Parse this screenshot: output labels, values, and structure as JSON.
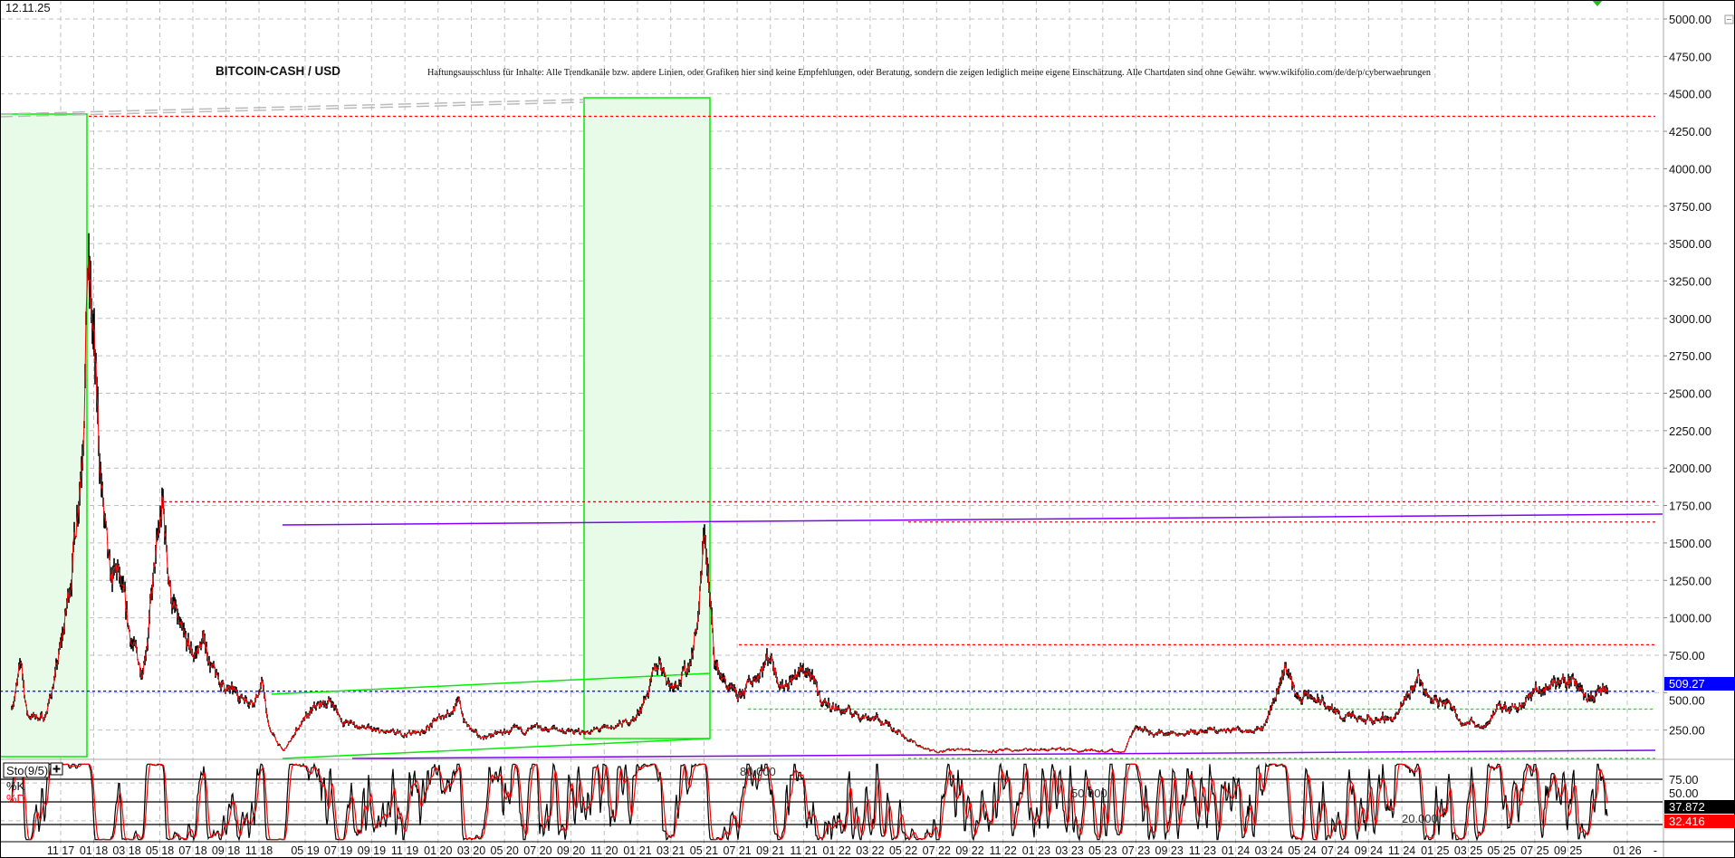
{
  "header": {
    "date": "12.11.25",
    "title": "BITCOIN-CASH / USD",
    "disclaimer": "Haftungsausschluss für Inhalte: Alle Trendkanäle bzw. andere Linien, oder Grafiken hier sind keine Empfehlungen, oder Beratung, sondern die zeigen lediglich meine eigene Einschätzung. Alle Chartdaten sind ohne Gewähr.  www.wikifolio.com/de/de/p/cyberwaehrungen"
  },
  "colors": {
    "candle": "#000000",
    "close_line": "#ff0000",
    "zone_fill": "#e8fbe8",
    "zone_border": "#00ee00",
    "last_price_bg": "#0000ff",
    "k_bg": "#000000",
    "d_bg": "#ff0000",
    "purple": "#8000ff"
  },
  "chart_data": [
    {
      "type": "line",
      "series_style": "bar-ohlc with close line",
      "y_axis_side": "right",
      "ylim": [
        0,
        5100
      ],
      "y_ticks": [
        "5000.00",
        "4750.00",
        "4500.00",
        "4250.00",
        "4000.00",
        "3750.00",
        "3500.00",
        "3250.00",
        "3000.00",
        "2750.00",
        "2500.00",
        "2250.00",
        "2000.00",
        "1750.00",
        "1500.00",
        "1250.00",
        "1000.00",
        "750.00",
        "500.00",
        "250.00"
      ],
      "x_ticks": [
        "11 17",
        "01 18",
        "03 18",
        "05 18",
        "07 18",
        "09 18",
        "11 18",
        "05 19",
        "07 19",
        "09 19",
        "11 19",
        "01 20",
        "03 20",
        "05 20",
        "07 20",
        "09 20",
        "11 20",
        "01 21",
        "03 21",
        "05 21",
        "07 21",
        "09 21",
        "11 21",
        "01 22",
        "03 22",
        "05 22",
        "07 22",
        "09 22",
        "11 22",
        "01 23",
        "03 23",
        "05 23",
        "07 23",
        "09 23",
        "11 23",
        "01 24",
        "03 24",
        "05 24",
        "07 24",
        "09 24",
        "11 24",
        "01 25",
        "03 25",
        "05 25",
        "07 25",
        "09 25",
        "01 26",
        "-"
      ],
      "grid": true,
      "last_price": "509.27",
      "last_price_value": 509.27,
      "points": [
        [
          "2017-08-01",
          400
        ],
        [
          "2017-08-20",
          700
        ],
        [
          "2017-09-01",
          350
        ],
        [
          "2017-10-01",
          330
        ],
        [
          "2017-10-20",
          600
        ],
        [
          "2017-11-20",
          1300
        ],
        [
          "2017-12-10",
          2200
        ],
        [
          "2017-12-20",
          3400
        ],
        [
          "2018-01-01",
          2800
        ],
        [
          "2018-01-08",
          2300
        ],
        [
          "2018-01-17",
          1800
        ],
        [
          "2018-02-01",
          1200
        ],
        [
          "2018-02-15",
          1300
        ],
        [
          "2018-03-06",
          900
        ],
        [
          "2018-03-28",
          650
        ],
        [
          "2018-04-21",
          1300
        ],
        [
          "2018-05-06",
          1750
        ],
        [
          "2018-05-22",
          1150
        ],
        [
          "2018-06-12",
          850
        ],
        [
          "2018-07-02",
          750
        ],
        [
          "2018-07-22",
          850
        ],
        [
          "2018-08-12",
          600
        ],
        [
          "2018-09-12",
          500
        ],
        [
          "2018-10-22",
          450
        ],
        [
          "2018-11-18",
          560
        ],
        [
          "2018-12-05",
          300
        ],
        [
          "2019-01-12",
          170
        ],
        [
          "2019-02-06",
          110
        ],
        [
          "2019-03-28",
          260
        ],
        [
          "2019-05-20",
          400
        ],
        [
          "2019-06-18",
          450
        ],
        [
          "2019-07-09",
          310
        ],
        [
          "2019-09-09",
          240
        ],
        [
          "2019-10-18",
          220
        ],
        [
          "2019-12-01",
          240
        ],
        [
          "2020-01-10",
          350
        ],
        [
          "2020-02-10",
          430
        ],
        [
          "2020-02-20",
          300
        ],
        [
          "2020-03-15",
          200
        ],
        [
          "2020-05-10",
          240
        ],
        [
          "2020-08-01",
          260
        ],
        [
          "2020-09-10",
          230
        ],
        [
          "2020-11-10",
          260
        ],
        [
          "2020-12-28",
          330
        ],
        [
          "2021-01-12",
          450
        ],
        [
          "2021-02-12",
          720
        ],
        [
          "2021-03-01",
          550
        ],
        [
          "2021-04-01",
          650
        ],
        [
          "2021-04-20",
          1000
        ],
        [
          "2021-05-03",
          1600
        ],
        [
          "2021-05-12",
          1100
        ],
        [
          "2021-05-21",
          700
        ],
        [
          "2021-06-10",
          560
        ],
        [
          "2021-07-01",
          450
        ],
        [
          "2021-08-01",
          600
        ],
        [
          "2021-09-01",
          760
        ],
        [
          "2021-09-22",
          550
        ],
        [
          "2021-10-20",
          620
        ],
        [
          "2021-11-09",
          650
        ],
        [
          "2021-12-03",
          450
        ],
        [
          "2022-01-10",
          380
        ],
        [
          "2022-03-10",
          330
        ],
        [
          "2022-04-18",
          260
        ],
        [
          "2022-05-18",
          170
        ],
        [
          "2022-06-20",
          110
        ],
        [
          "2022-08-20",
          120
        ],
        [
          "2022-10-20",
          110
        ],
        [
          "2023-02-01",
          120
        ],
        [
          "2023-04-01",
          115
        ],
        [
          "2023-06-10",
          105
        ],
        [
          "2023-06-20",
          200
        ],
        [
          "2023-07-01",
          290
        ],
        [
          "2023-07-30",
          230
        ],
        [
          "2023-10-20",
          235
        ],
        [
          "2023-12-20",
          250
        ],
        [
          "2024-02-20",
          270
        ],
        [
          "2024-03-10",
          450
        ],
        [
          "2024-04-01",
          700
        ],
        [
          "2024-04-20",
          480
        ],
        [
          "2024-06-01",
          450
        ],
        [
          "2024-07-10",
          350
        ],
        [
          "2024-08-20",
          310
        ],
        [
          "2024-10-20",
          340
        ],
        [
          "2024-12-01",
          620
        ],
        [
          "2024-12-20",
          460
        ],
        [
          "2025-02-01",
          420
        ],
        [
          "2025-02-20",
          310
        ],
        [
          "2025-04-01",
          280
        ],
        [
          "2025-04-20",
          380
        ],
        [
          "2025-06-01",
          420
        ],
        [
          "2025-07-10",
          520
        ],
        [
          "2025-08-18",
          590
        ],
        [
          "2025-09-18",
          560
        ],
        [
          "2025-10-10",
          470
        ],
        [
          "2025-11-12",
          509.27
        ]
      ],
      "horizontal_lines": [
        {
          "value": 4350,
          "style": "dotted",
          "color": "#ff0000"
        },
        {
          "value": 1775,
          "style": "dotted",
          "color": "#ff0000"
        },
        {
          "value": 1640,
          "style": "dotted",
          "color": "#ff0000"
        },
        {
          "value": 820,
          "style": "dotted",
          "color": "#ff0000"
        },
        {
          "value": 509.27,
          "style": "dotted",
          "color": "#0000ff"
        },
        {
          "value": 390,
          "style": "dotted",
          "color": "#00ee00"
        },
        {
          "value": 60,
          "style": "dotted",
          "color": "#00ee00"
        }
      ]
    },
    {
      "type": "line",
      "title": "Sto(9/5)",
      "series": [
        {
          "name": "%K",
          "color": "#000000",
          "last": "37.872"
        },
        {
          "name": "%D",
          "color": "#ff0000",
          "last": "32.416"
        }
      ],
      "levels": [
        "80.000",
        "50.000",
        "20.000"
      ],
      "y_ticks": [
        "75.00",
        "50.00"
      ],
      "ylim": [
        0,
        100
      ]
    }
  ]
}
